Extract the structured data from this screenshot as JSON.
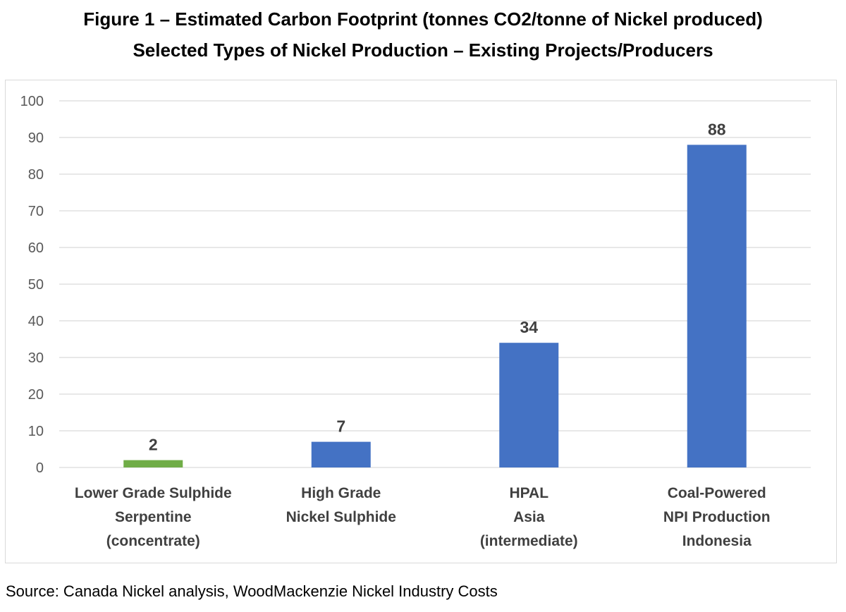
{
  "title_line1": "Figure 1 – Estimated Carbon Footprint (tonnes CO2/tonne of Nickel produced)",
  "title_line2": "Selected Types of Nickel Production – Existing Projects/Producers",
  "source": "Source: Canada Nickel analysis, WoodMackenzie Nickel Industry Costs",
  "colors": {
    "blue": "#4472c4",
    "green": "#70ad47",
    "grid": "#d9d9d9",
    "tick_text": "#595959",
    "label_text": "#404040"
  },
  "chart_data": {
    "type": "bar",
    "categories": [
      [
        "Lower Grade Sulphide",
        "Serpentine",
        "(concentrate)"
      ],
      [
        "High Grade",
        "Nickel Sulphide"
      ],
      [
        "HPAL",
        "Asia",
        "(intermediate)"
      ],
      [
        "Coal-Powered",
        "NPI Production",
        "Indonesia"
      ]
    ],
    "values": [
      2,
      7,
      34,
      88
    ],
    "data_labels": [
      "2",
      "7",
      "34",
      "88"
    ],
    "bar_colors": [
      "#70ad47",
      "#4472c4",
      "#4472c4",
      "#4472c4"
    ],
    "ylim": [
      0,
      100
    ],
    "yticks": [
      0,
      10,
      20,
      30,
      40,
      50,
      60,
      70,
      80,
      90,
      100
    ],
    "grid": true,
    "legend": "none",
    "xlabel": "",
    "ylabel": ""
  }
}
